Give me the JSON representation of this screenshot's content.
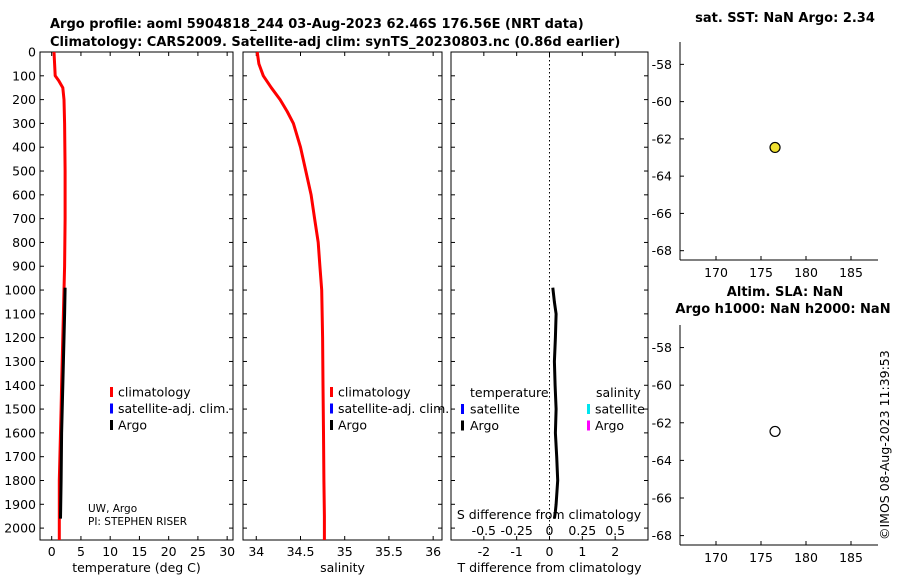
{
  "title": {
    "line1": "Argo profile: aoml 5904818_244 03-Aug-2023 62.46S 176.56E (NRT data)",
    "line2": "Climatology: CARS2009. Satellite-adj clim: synTS_20230803.nc (0.86d earlier)"
  },
  "attribution": {
    "line1": "UW, Argo",
    "line2": "PI: STEPHEN RISER"
  },
  "copyright": "©IMOS 08-Aug-2023 11:39:53",
  "colors": {
    "climatology": "#ff0000",
    "satellite_adj": "#0000ff",
    "argo": "#000000",
    "satellite_s": "#00e5ee",
    "argo_s": "#ff00ff",
    "sst_marker": "#f0e030"
  },
  "chart_data": [
    {
      "type": "line",
      "id": "temperature",
      "xlabel": "temperature (deg C)",
      "xlim": [
        -2,
        31
      ],
      "ylim": [
        2050,
        0
      ],
      "xticks": [
        "0",
        "5",
        "10",
        "15",
        "20",
        "25",
        "30"
      ],
      "xtick_values": [
        0,
        5,
        10,
        15,
        20,
        25,
        30
      ],
      "yticks": [
        "0",
        "100",
        "200",
        "300",
        "400",
        "500",
        "600",
        "700",
        "800",
        "900",
        "1000",
        "1100",
        "1200",
        "1300",
        "1400",
        "1500",
        "1600",
        "1700",
        "1800",
        "1900",
        "2000"
      ],
      "ytick_values": [
        0,
        100,
        200,
        300,
        400,
        500,
        600,
        700,
        800,
        900,
        1000,
        1100,
        1200,
        1300,
        1400,
        1500,
        1600,
        1700,
        1800,
        1900,
        2000
      ],
      "legend": [
        "climatology",
        "satellite-adj. clim.",
        "Argo"
      ],
      "series": [
        {
          "name": "climatology",
          "color": "#ff0000",
          "x": [
            0.4,
            0.5,
            0.6,
            1.2,
            1.9,
            2.1,
            2.2,
            2.3,
            2.3,
            2.2,
            2.1,
            2.0,
            1.9,
            1.8,
            1.7,
            1.6,
            1.5,
            1.4,
            1.3,
            1.3
          ],
          "y": [
            0,
            50,
            100,
            120,
            150,
            200,
            300,
            500,
            700,
            900,
            1000,
            1100,
            1200,
            1300,
            1400,
            1500,
            1600,
            1700,
            1800,
            2050
          ]
        },
        {
          "name": "Argo",
          "color": "#000000",
          "x": [
            2.3,
            2.2,
            2.1,
            2.0,
            1.9,
            1.8,
            1.7,
            1.6,
            1.5
          ],
          "y": [
            990,
            1100,
            1200,
            1300,
            1400,
            1500,
            1600,
            1800,
            1960
          ]
        }
      ]
    },
    {
      "type": "line",
      "id": "salinity",
      "xlabel": "salinity",
      "xlim": [
        33.85,
        36.1
      ],
      "ylim": [
        2050,
        0
      ],
      "xticks": [
        "34",
        "34.5",
        "35",
        "35.5",
        "36"
      ],
      "xtick_values": [
        34,
        34.5,
        35,
        35.5,
        36
      ],
      "legend": [
        "climatology",
        "satellite-adj. clim.",
        "Argo"
      ],
      "series": [
        {
          "name": "climatology",
          "color": "#ff0000",
          "x": [
            34.01,
            34.03,
            34.08,
            34.17,
            34.27,
            34.35,
            34.42,
            34.5,
            34.56,
            34.62,
            34.66,
            34.7,
            34.72,
            34.74,
            34.75,
            34.755,
            34.76,
            34.765,
            34.77,
            34.77
          ],
          "y": [
            0,
            50,
            100,
            150,
            200,
            250,
            300,
            400,
            500,
            600,
            700,
            800,
            900,
            1000,
            1200,
            1400,
            1600,
            1800,
            1950,
            2050
          ]
        }
      ]
    },
    {
      "type": "line",
      "id": "difference",
      "xlabel": "T difference from climatology",
      "xlabel2": "S difference from climatology",
      "xlim": [
        -3,
        3
      ],
      "ylim": [
        2050,
        0
      ],
      "xticks": [
        "-2",
        "-1",
        "0",
        "1",
        "2"
      ],
      "xtick_values": [
        -2,
        -1,
        0,
        1,
        2
      ],
      "s_ticks": [
        "-0.5",
        "-0.25",
        "0",
        "0.25",
        "0.5"
      ],
      "s_tick_values": [
        -0.5,
        -0.25,
        0,
        0.25,
        0.5
      ],
      "s_xlim": [
        -0.75,
        0.75
      ],
      "legend_temperature": {
        "title": "temperature",
        "items": [
          "satellite",
          "Argo"
        ]
      },
      "legend_salinity": {
        "title": "salinity",
        "items": [
          "satellite",
          "Argo"
        ]
      },
      "series": [
        {
          "name": "Argo",
          "color": "#000000",
          "x": [
            0.1,
            0.15,
            0.2,
            0.18,
            0.15,
            0.17,
            0.2,
            0.18,
            0.22,
            0.25,
            0.2,
            0.18,
            0.15
          ],
          "y": [
            990,
            1050,
            1100,
            1200,
            1300,
            1400,
            1500,
            1600,
            1700,
            1800,
            1900,
            1930,
            1960
          ]
        }
      ]
    },
    {
      "type": "scatter",
      "id": "sst_map",
      "title": "sat. SST: NaN Argo: 2.34",
      "xlim": [
        166,
        188
      ],
      "ylim": [
        -68.5,
        -56.8
      ],
      "xticks": [
        "170",
        "175",
        "180",
        "185"
      ],
      "xtick_values": [
        170,
        175,
        180,
        185
      ],
      "yticks": [
        "-58",
        "-60",
        "-62",
        "-64",
        "-66",
        "-68"
      ],
      "ytick_values": [
        -58,
        -60,
        -62,
        -64,
        -66,
        -68
      ],
      "points": [
        {
          "x": 176.56,
          "y": -62.46,
          "fill": "#f0e030"
        }
      ]
    },
    {
      "type": "scatter",
      "id": "sla_map",
      "title": "Altim. SLA: NaN",
      "title2": "Argo h1000: NaN h2000: NaN",
      "xlim": [
        166,
        188
      ],
      "ylim": [
        -68.5,
        -56.8
      ],
      "xticks": [
        "170",
        "175",
        "180",
        "185"
      ],
      "xtick_values": [
        170,
        175,
        180,
        185
      ],
      "yticks": [
        "-58",
        "-60",
        "-62",
        "-64",
        "-66",
        "-68"
      ],
      "ytick_values": [
        -58,
        -60,
        -62,
        -64,
        -66,
        -68
      ],
      "points": [
        {
          "x": 176.56,
          "y": -62.46,
          "fill": "#ffffff"
        }
      ]
    }
  ]
}
